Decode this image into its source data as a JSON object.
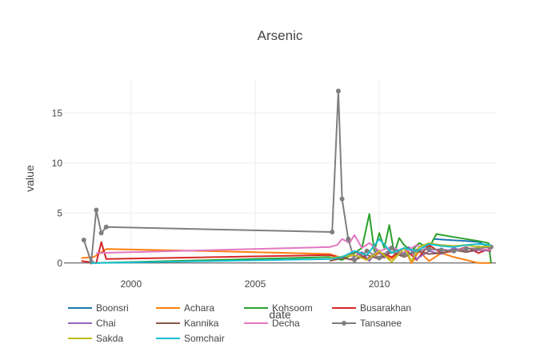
{
  "chart_data": {
    "type": "line",
    "title": "Arsenic",
    "xlabel": "date",
    "ylabel": "value",
    "xlim": [
      1997.3,
      2014.7
    ],
    "ylim": [
      -0.1,
      18.3
    ],
    "x_ticks": [
      2000,
      2005,
      2010
    ],
    "y_ticks": [
      0,
      5,
      10,
      15
    ],
    "grid": true,
    "legend_position": "bottom-left",
    "series": [
      {
        "name": "Boonsri",
        "color": "#1f77b4",
        "markers": false,
        "x": [
          2012.2,
          2012.8,
          2013.5,
          2014.0,
          2014.5
        ],
        "y": [
          2.4,
          2.3,
          2.2,
          2.1,
          1.5
        ]
      },
      {
        "name": "Achara",
        "color": "#ff7f0e",
        "markers": false,
        "x": [
          1998.0,
          1998.5,
          1999.0,
          2003.0,
          2008.0,
          2008.5,
          2009.0,
          2009.5,
          2010.0,
          2010.5,
          2011.0,
          2011.3,
          2011.6,
          2012.0,
          2012.5,
          2013.0,
          2013.5,
          2014.0,
          2014.5
        ],
        "y": [
          0.5,
          0.6,
          1.4,
          1.2,
          0.9,
          0.5,
          0.8,
          0.3,
          1.0,
          0.4,
          1.5,
          0.0,
          1.2,
          0.2,
          1.0,
          0.6,
          0.3,
          0.0,
          0.0
        ]
      },
      {
        "name": "Kohsoom",
        "color": "#2ca02c",
        "markers": false,
        "x": [
          1998.5,
          2008.0,
          2008.5,
          2009.0,
          2009.3,
          2009.6,
          2009.8,
          2010.0,
          2010.2,
          2010.4,
          2010.6,
          2010.8,
          2011.0,
          2011.3,
          2011.6,
          2012.0,
          2012.3,
          2013.0,
          2014.0,
          2014.4,
          2014.5
        ],
        "y": [
          0.0,
          0.6,
          0.3,
          1.0,
          1.5,
          4.9,
          1.2,
          3.0,
          1.5,
          3.8,
          1.0,
          2.5,
          1.8,
          1.2,
          2.0,
          1.5,
          2.9,
          2.6,
          2.2,
          2.0,
          0.0
        ]
      },
      {
        "name": "Busarakhan",
        "color": "#d62728",
        "markers": false,
        "x": [
          1998.0,
          1998.6,
          1998.8,
          1999.0,
          2008.0,
          2008.5,
          2009.0,
          2009.5,
          2010.0,
          2010.5,
          2011.0,
          2011.5,
          2012.0,
          2012.5,
          2013.0,
          2013.5,
          2014.0,
          2014.5
        ],
        "y": [
          0.2,
          0.0,
          2.1,
          0.4,
          0.8,
          0.5,
          1.2,
          0.4,
          1.1,
          0.6,
          1.5,
          0.3,
          1.8,
          1.0,
          1.2,
          1.6,
          1.0,
          1.5
        ]
      },
      {
        "name": "Chai",
        "color": "#9467bd",
        "markers": false,
        "x": [
          2008.8,
          2009.3,
          2009.6,
          2009.9,
          2010.2,
          2010.5,
          2010.9,
          2011.2,
          2011.5,
          2012.0,
          2012.5,
          2013.0,
          2013.5,
          2014.0,
          2014.5
        ],
        "y": [
          0.3,
          1.1,
          0.2,
          1.3,
          0.5,
          1.5,
          0.8,
          1.6,
          0.4,
          1.2,
          0.9,
          1.5,
          1.1,
          1.3,
          1.2
        ]
      },
      {
        "name": "Kannika",
        "color": "#8c564b",
        "markers": false,
        "x": [
          2008.0,
          2008.5,
          2009.0,
          2009.5,
          2010.0,
          2010.5,
          2011.0,
          2011.5,
          2012.0,
          2012.5,
          2013.0,
          2013.5,
          2014.0,
          2014.5
        ],
        "y": [
          0.2,
          0.5,
          0.3,
          0.8,
          0.4,
          1.1,
          0.6,
          1.2,
          0.9,
          1.0,
          1.3,
          1.1,
          1.4,
          1.2
        ]
      },
      {
        "name": "Decha",
        "color": "#e377c2",
        "markers": false,
        "x": [
          1998.6,
          2008.0,
          2008.3,
          2008.5,
          2008.8,
          2009.0,
          2009.3,
          2009.6,
          2010.0,
          2010.5,
          2011.0,
          2011.5,
          2012.0,
          2012.5,
          2013.0,
          2013.5,
          2014.0,
          2014.5
        ],
        "y": [
          1.0,
          1.6,
          1.8,
          2.4,
          2.0,
          2.8,
          1.5,
          2.0,
          1.2,
          1.6,
          1.0,
          1.8,
          1.3,
          1.4,
          1.2,
          1.5,
          1.4,
          1.3
        ]
      },
      {
        "name": "Tansanee",
        "color": "#7f7f7f",
        "markers": true,
        "x": [
          1998.1,
          1998.4,
          1998.6,
          1998.8,
          1999.0,
          2008.1,
          2008.35,
          2008.5,
          2008.75,
          2009.0,
          2009.5,
          2010.0,
          2010.5,
          2011.0,
          2011.5,
          2012.0,
          2012.5,
          2013.0,
          2013.5,
          2014.0,
          2014.5
        ],
        "y": [
          2.3,
          0.1,
          5.3,
          3.0,
          3.6,
          3.1,
          17.2,
          6.4,
          2.4,
          0.3,
          1.2,
          0.5,
          1.5,
          0.8,
          1.2,
          1.4,
          1.3,
          1.2,
          1.4,
          1.5,
          1.6
        ]
      },
      {
        "name": "Sakda",
        "color": "#bcbd22",
        "markers": false,
        "x": [
          2008.0,
          2009.0,
          2009.5,
          2010.0,
          2010.5,
          2011.0,
          2011.3,
          2011.6,
          2012.0,
          2012.5,
          2013.0,
          2013.5,
          2014.0,
          2014.5
        ],
        "y": [
          0.5,
          0.8,
          0.3,
          1.2,
          0.1,
          1.5,
          0.2,
          1.6,
          2.0,
          1.8,
          1.7,
          1.8,
          1.6,
          1.7
        ]
      },
      {
        "name": "Somchair",
        "color": "#17becf",
        "markers": false,
        "x": [
          1998.4,
          2008.0,
          2008.5,
          2009.0,
          2009.5,
          2010.0,
          2010.5,
          2011.0,
          2011.5,
          2012.0,
          2012.5,
          2013.0,
          2013.5,
          2014.0,
          2014.5
        ],
        "y": [
          0.0,
          0.4,
          0.6,
          1.2,
          0.8,
          2.4,
          1.0,
          1.5,
          1.2,
          1.9,
          1.7,
          1.6,
          1.8,
          1.9,
          1.8
        ]
      }
    ]
  }
}
